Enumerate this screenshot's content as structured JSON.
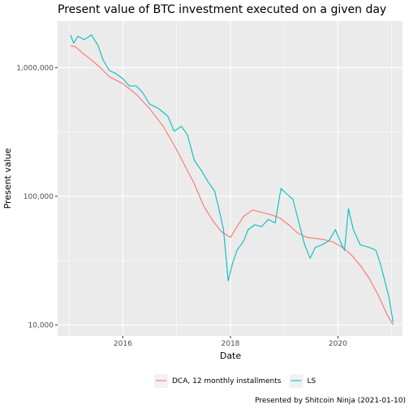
{
  "chart_data": {
    "type": "line",
    "title": "Present value of BTC investment executed on a given day",
    "xlabel": "Date",
    "ylabel": "Present value",
    "caption": "Presented by Shitcoin Ninja (2021-01-10)",
    "y_scale": "log",
    "xlim": [
      "2014-10-15",
      "2021-03-15"
    ],
    "ylim": [
      8200,
      2300000
    ],
    "x_ticks": [
      {
        "date": "2016-01-01",
        "label": "2016"
      },
      {
        "date": "2018-01-01",
        "label": "2018"
      },
      {
        "date": "2020-01-01",
        "label": "2020"
      }
    ],
    "y_ticks": [
      {
        "value": 1000000,
        "label": "1,000,000"
      },
      {
        "value": 100000,
        "label": "100,000"
      },
      {
        "value": 10000,
        "label": "10,000"
      }
    ],
    "grid": true,
    "legend": "bottom",
    "series": [
      {
        "name": "DCA, 12 monthly installments",
        "color": "#F8766D",
        "points": [
          [
            "2015-01-10",
            1480000
          ],
          [
            "2015-02-15",
            1450000
          ],
          [
            "2015-04-01",
            1300000
          ],
          [
            "2015-06-01",
            1150000
          ],
          [
            "2015-08-01",
            1000000
          ],
          [
            "2015-10-01",
            850000
          ],
          [
            "2016-01-01",
            750000
          ],
          [
            "2016-04-01",
            620000
          ],
          [
            "2016-07-01",
            480000
          ],
          [
            "2016-10-01",
            350000
          ],
          [
            "2017-01-01",
            230000
          ],
          [
            "2017-03-01",
            170000
          ],
          [
            "2017-05-01",
            125000
          ],
          [
            "2017-07-01",
            85000
          ],
          [
            "2017-09-01",
            65000
          ],
          [
            "2017-11-01",
            53000
          ],
          [
            "2018-01-01",
            48000
          ],
          [
            "2018-02-15",
            58000
          ],
          [
            "2018-04-01",
            70000
          ],
          [
            "2018-06-01",
            78000
          ],
          [
            "2018-08-01",
            75000
          ],
          [
            "2018-10-01",
            72000
          ],
          [
            "2018-12-01",
            68000
          ],
          [
            "2019-02-01",
            60000
          ],
          [
            "2019-04-01",
            52000
          ],
          [
            "2019-06-01",
            48000
          ],
          [
            "2019-08-01",
            47000
          ],
          [
            "2019-10-01",
            46000
          ],
          [
            "2019-12-01",
            44000
          ],
          [
            "2020-02-01",
            40000
          ],
          [
            "2020-04-01",
            35000
          ],
          [
            "2020-06-01",
            29000
          ],
          [
            "2020-08-01",
            23000
          ],
          [
            "2020-10-01",
            17000
          ],
          [
            "2020-12-01",
            12000
          ],
          [
            "2021-01-10",
            10000
          ]
        ]
      },
      {
        "name": "LS",
        "color": "#00BFC4",
        "points": [
          [
            "2015-01-10",
            1800000
          ],
          [
            "2015-02-01",
            1550000
          ],
          [
            "2015-03-01",
            1750000
          ],
          [
            "2015-04-15",
            1650000
          ],
          [
            "2015-06-01",
            1800000
          ],
          [
            "2015-07-15",
            1500000
          ],
          [
            "2015-08-20",
            1150000
          ],
          [
            "2015-10-01",
            950000
          ],
          [
            "2015-11-15",
            900000
          ],
          [
            "2016-01-01",
            820000
          ],
          [
            "2016-02-15",
            720000
          ],
          [
            "2016-04-01",
            720000
          ],
          [
            "2016-05-15",
            640000
          ],
          [
            "2016-07-01",
            520000
          ],
          [
            "2016-09-01",
            480000
          ],
          [
            "2016-11-01",
            420000
          ],
          [
            "2016-12-15",
            320000
          ],
          [
            "2017-02-01",
            350000
          ],
          [
            "2017-03-15",
            300000
          ],
          [
            "2017-05-01",
            190000
          ],
          [
            "2017-06-15",
            160000
          ],
          [
            "2017-08-01",
            130000
          ],
          [
            "2017-09-15",
            110000
          ],
          [
            "2017-10-15",
            80000
          ],
          [
            "2017-11-15",
            55000
          ],
          [
            "2017-12-17",
            22000
          ],
          [
            "2018-01-15",
            30000
          ],
          [
            "2018-02-15",
            38000
          ],
          [
            "2018-04-01",
            45000
          ],
          [
            "2018-05-01",
            55000
          ],
          [
            "2018-06-15",
            60000
          ],
          [
            "2018-08-01",
            58000
          ],
          [
            "2018-09-15",
            66000
          ],
          [
            "2018-11-01",
            62000
          ],
          [
            "2018-12-10",
            115000
          ],
          [
            "2019-01-15",
            105000
          ],
          [
            "2019-03-01",
            95000
          ],
          [
            "2019-04-15",
            60000
          ],
          [
            "2019-05-20",
            42000
          ],
          [
            "2019-06-26",
            33000
          ],
          [
            "2019-08-01",
            40000
          ],
          [
            "2019-09-15",
            42000
          ],
          [
            "2019-11-01",
            45000
          ],
          [
            "2019-12-15",
            55000
          ],
          [
            "2020-01-15",
            45000
          ],
          [
            "2020-02-15",
            38000
          ],
          [
            "2020-03-13",
            80000
          ],
          [
            "2020-04-15",
            55000
          ],
          [
            "2020-06-01",
            42000
          ],
          [
            "2020-08-01",
            40000
          ],
          [
            "2020-09-15",
            38000
          ],
          [
            "2020-10-15",
            30000
          ],
          [
            "2020-11-15",
            22000
          ],
          [
            "2020-12-15",
            16000
          ],
          [
            "2021-01-10",
            10500
          ]
        ]
      }
    ]
  }
}
